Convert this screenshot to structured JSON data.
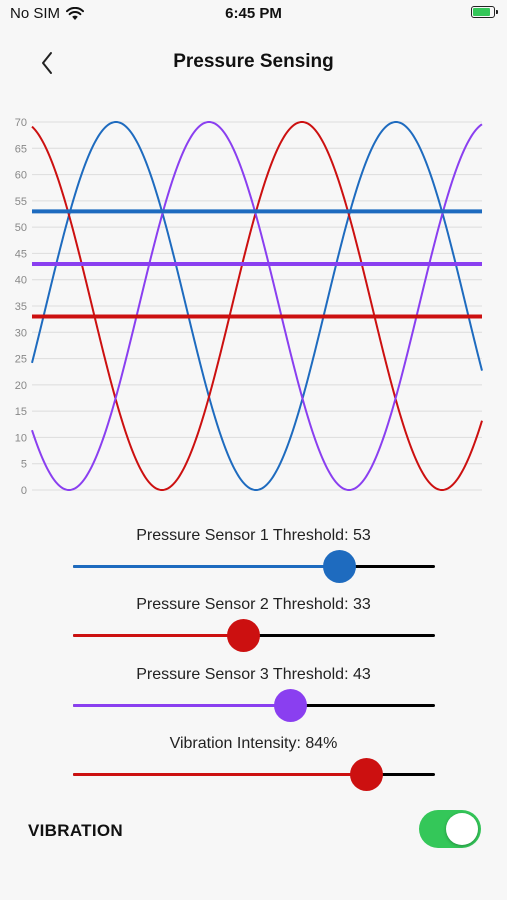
{
  "status_bar": {
    "carrier": "No SIM",
    "time": "6:45 PM"
  },
  "nav": {
    "title": "Pressure Sensing"
  },
  "chart_data": {
    "type": "line",
    "ylim": [
      0,
      70
    ],
    "y_ticks": [
      "70",
      "65",
      "60",
      "55",
      "50",
      "45",
      "40",
      "35",
      "30",
      "25",
      "20",
      "15",
      "10",
      "5",
      "0"
    ],
    "grid": true,
    "series": [
      {
        "color": "#1e6bbf",
        "kind": "sine",
        "threshold": 53
      },
      {
        "color": "#cc1010",
        "kind": "sine",
        "threshold": 33
      },
      {
        "color": "#8a3ff0",
        "kind": "sine",
        "threshold": 43
      }
    ]
  },
  "sliders": [
    {
      "label": "Pressure Sensor 1 Threshold: 53",
      "value_fraction": 0.735,
      "color": "#1e6bbf"
    },
    {
      "label": "Pressure Sensor 2 Threshold: 33",
      "value_fraction": 0.47,
      "color": "#cc1010"
    },
    {
      "label": "Pressure Sensor 3 Threshold: 43",
      "value_fraction": 0.6,
      "color": "#8a3ff0"
    },
    {
      "label": "Vibration Intensity: 84%",
      "value_fraction": 0.81,
      "color": "#cc1010"
    }
  ],
  "vibration": {
    "label": "VIBRATION",
    "enabled": true
  }
}
